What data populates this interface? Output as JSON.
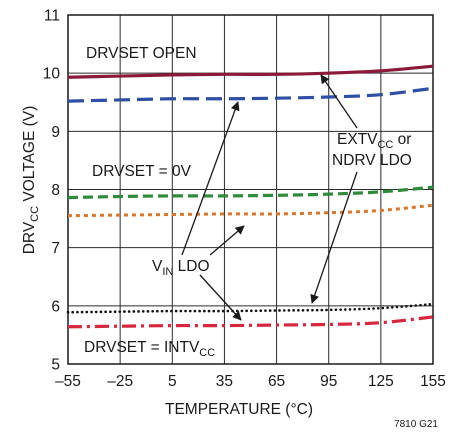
{
  "chart_data": {
    "type": "line",
    "title": "",
    "xlabel": "TEMPERATURE (°C)",
    "ylabel": {
      "main": "DRV",
      "sub": "CC",
      "rest": " VOLTAGE (V)"
    },
    "xlim": [
      -55,
      155
    ],
    "ylim": [
      5,
      11
    ],
    "x_ticks": [
      -55,
      -25,
      5,
      35,
      65,
      95,
      125,
      155
    ],
    "x_tick_labels": [
      "–55",
      "–25",
      "5",
      "35",
      "65",
      "95",
      "125",
      "155"
    ],
    "y_ticks": [
      5,
      6,
      7,
      8,
      9,
      10,
      11
    ],
    "y_tick_labels": [
      "5",
      "6",
      "7",
      "8",
      "9",
      "10",
      "11"
    ],
    "grid": true,
    "series": [
      {
        "color": "#8b1a3a",
        "dash": "solid",
        "x": [
          -55,
          -25,
          5,
          35,
          65,
          95,
          125,
          155
        ],
        "y": [
          9.93,
          9.95,
          9.97,
          9.98,
          9.98,
          10.0,
          10.04,
          10.12
        ]
      },
      {
        "color": "#2e4fa3",
        "dash": "longdash",
        "x": [
          -55,
          -25,
          5,
          35,
          65,
          95,
          125,
          155
        ],
        "y": [
          9.52,
          9.54,
          9.56,
          9.56,
          9.57,
          9.59,
          9.63,
          9.74
        ]
      },
      {
        "color": "#2e8b3c",
        "dash": "dash",
        "x": [
          -55,
          -25,
          5,
          35,
          65,
          95,
          125,
          155
        ],
        "y": [
          7.86,
          7.88,
          7.89,
          7.89,
          7.9,
          7.92,
          7.96,
          8.04
        ]
      },
      {
        "color": "#d9772b",
        "dash": "dot",
        "x": [
          -55,
          -25,
          5,
          35,
          65,
          95,
          125,
          155
        ],
        "y": [
          7.55,
          7.56,
          7.57,
          7.58,
          7.58,
          7.6,
          7.64,
          7.73
        ]
      },
      {
        "color": "#111111",
        "dash": "finedot",
        "x": [
          -55,
          -25,
          5,
          35,
          65,
          95,
          125,
          155
        ],
        "y": [
          5.89,
          5.9,
          5.91,
          5.91,
          5.92,
          5.93,
          5.96,
          6.03
        ]
      },
      {
        "color": "#d7263d",
        "dash": "dashdot",
        "x": [
          -55,
          -25,
          5,
          35,
          65,
          95,
          125,
          155
        ],
        "y": [
          5.64,
          5.65,
          5.66,
          5.66,
          5.67,
          5.68,
          5.71,
          5.81
        ]
      }
    ],
    "annotations": {
      "drvset_open": "DRVSET OPEN",
      "drvset_0v": "DRVSET = 0V",
      "drvset_intvcc": {
        "main": "DRVSET = INTV",
        "sub": "CC"
      },
      "extvcc_line1": {
        "main": "EXTV",
        "sub": "CC",
        "rest": " or"
      },
      "extvcc_line2": "NDRV LDO",
      "vin_ldo": {
        "main": "V",
        "sub": "IN",
        "rest": " LDO"
      }
    },
    "figure_code": "7810 G21"
  }
}
